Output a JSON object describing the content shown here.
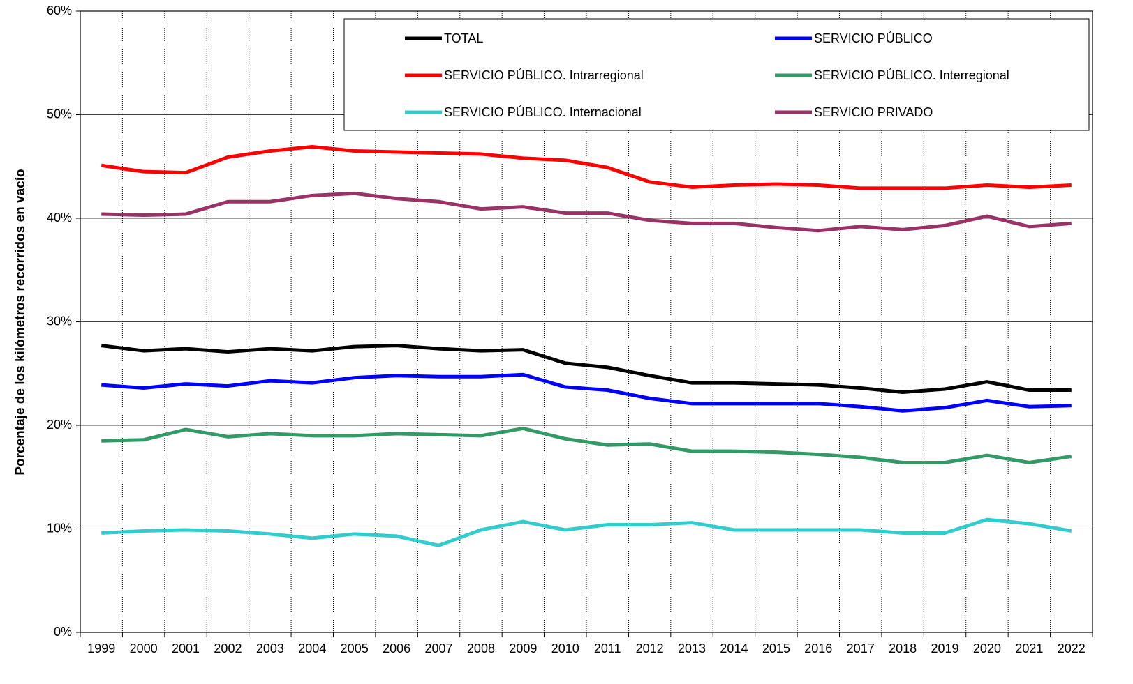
{
  "chart_data": {
    "type": "line",
    "y_label": "Porcentaje de los kilómetros recorridos en vacío",
    "categories": [
      "1999",
      "2000",
      "2001",
      "2002",
      "2003",
      "2004",
      "2005",
      "2006",
      "2007",
      "2008",
      "2009",
      "2010",
      "2011",
      "2012",
      "2013",
      "2014",
      "2015",
      "2016",
      "2017",
      "2018",
      "2019",
      "2020",
      "2021",
      "2022"
    ],
    "ylim": [
      0,
      60
    ],
    "yticks": [
      {
        "value": 0,
        "label": "0%"
      },
      {
        "value": 10,
        "label": "10%"
      },
      {
        "value": 20,
        "label": "20%"
      },
      {
        "value": 30,
        "label": "30%"
      },
      {
        "value": 40,
        "label": "40%"
      },
      {
        "value": 50,
        "label": "50%"
      },
      {
        "value": 60,
        "label": "60%"
      }
    ],
    "grid": true,
    "legend": "top-right",
    "series": [
      {
        "name": "TOTAL",
        "color": "#000000",
        "values": [
          27.7,
          27.2,
          27.4,
          27.1,
          27.4,
          27.2,
          27.6,
          27.7,
          27.4,
          27.2,
          27.3,
          26.0,
          25.6,
          24.8,
          24.1,
          24.1,
          24.0,
          23.9,
          23.6,
          23.2,
          23.5,
          24.2,
          23.4,
          23.4
        ]
      },
      {
        "name": "SERVICIO PÚBLICO",
        "color": "#0000ff",
        "values": [
          23.9,
          23.6,
          24.0,
          23.8,
          24.3,
          24.1,
          24.6,
          24.8,
          24.7,
          24.7,
          24.9,
          23.7,
          23.4,
          22.6,
          22.1,
          22.1,
          22.1,
          22.1,
          21.8,
          21.4,
          21.7,
          22.4,
          21.8,
          21.9
        ]
      },
      {
        "name": "SERVICIO PÚBLICO. Intrarregional",
        "color": "#ff0000",
        "values": [
          45.1,
          44.5,
          44.4,
          45.9,
          46.5,
          46.9,
          46.5,
          46.4,
          46.3,
          46.2,
          45.8,
          45.6,
          44.9,
          43.5,
          43.0,
          43.2,
          43.3,
          43.2,
          42.9,
          42.9,
          42.9,
          43.2,
          43.0,
          43.2
        ]
      },
      {
        "name": "SERVICIO PÚBLICO. Interregional",
        "color": "#339966",
        "values": [
          18.5,
          18.6,
          19.6,
          18.9,
          19.2,
          19.0,
          19.0,
          19.2,
          19.1,
          19.0,
          19.7,
          18.7,
          18.1,
          18.2,
          17.5,
          17.5,
          17.4,
          17.2,
          16.9,
          16.4,
          16.4,
          17.1,
          16.4,
          17.0
        ]
      },
      {
        "name": "SERVICIO PÚBLICO. Internacional",
        "color": "#33cccc",
        "values": [
          9.6,
          9.8,
          9.9,
          9.8,
          9.5,
          9.1,
          9.5,
          9.3,
          8.4,
          9.9,
          10.7,
          9.9,
          10.4,
          10.4,
          10.6,
          9.9,
          9.9,
          9.9,
          9.9,
          9.6,
          9.6,
          10.9,
          10.5,
          9.8
        ]
      },
      {
        "name": "SERVICIO PRIVADO",
        "color": "#993366",
        "values": [
          40.4,
          40.3,
          40.4,
          41.6,
          41.6,
          42.2,
          42.4,
          41.9,
          41.6,
          40.9,
          41.1,
          40.5,
          40.5,
          39.8,
          39.5,
          39.5,
          39.1,
          38.8,
          39.2,
          38.9,
          39.3,
          40.2,
          39.2,
          39.5
        ]
      }
    ]
  }
}
